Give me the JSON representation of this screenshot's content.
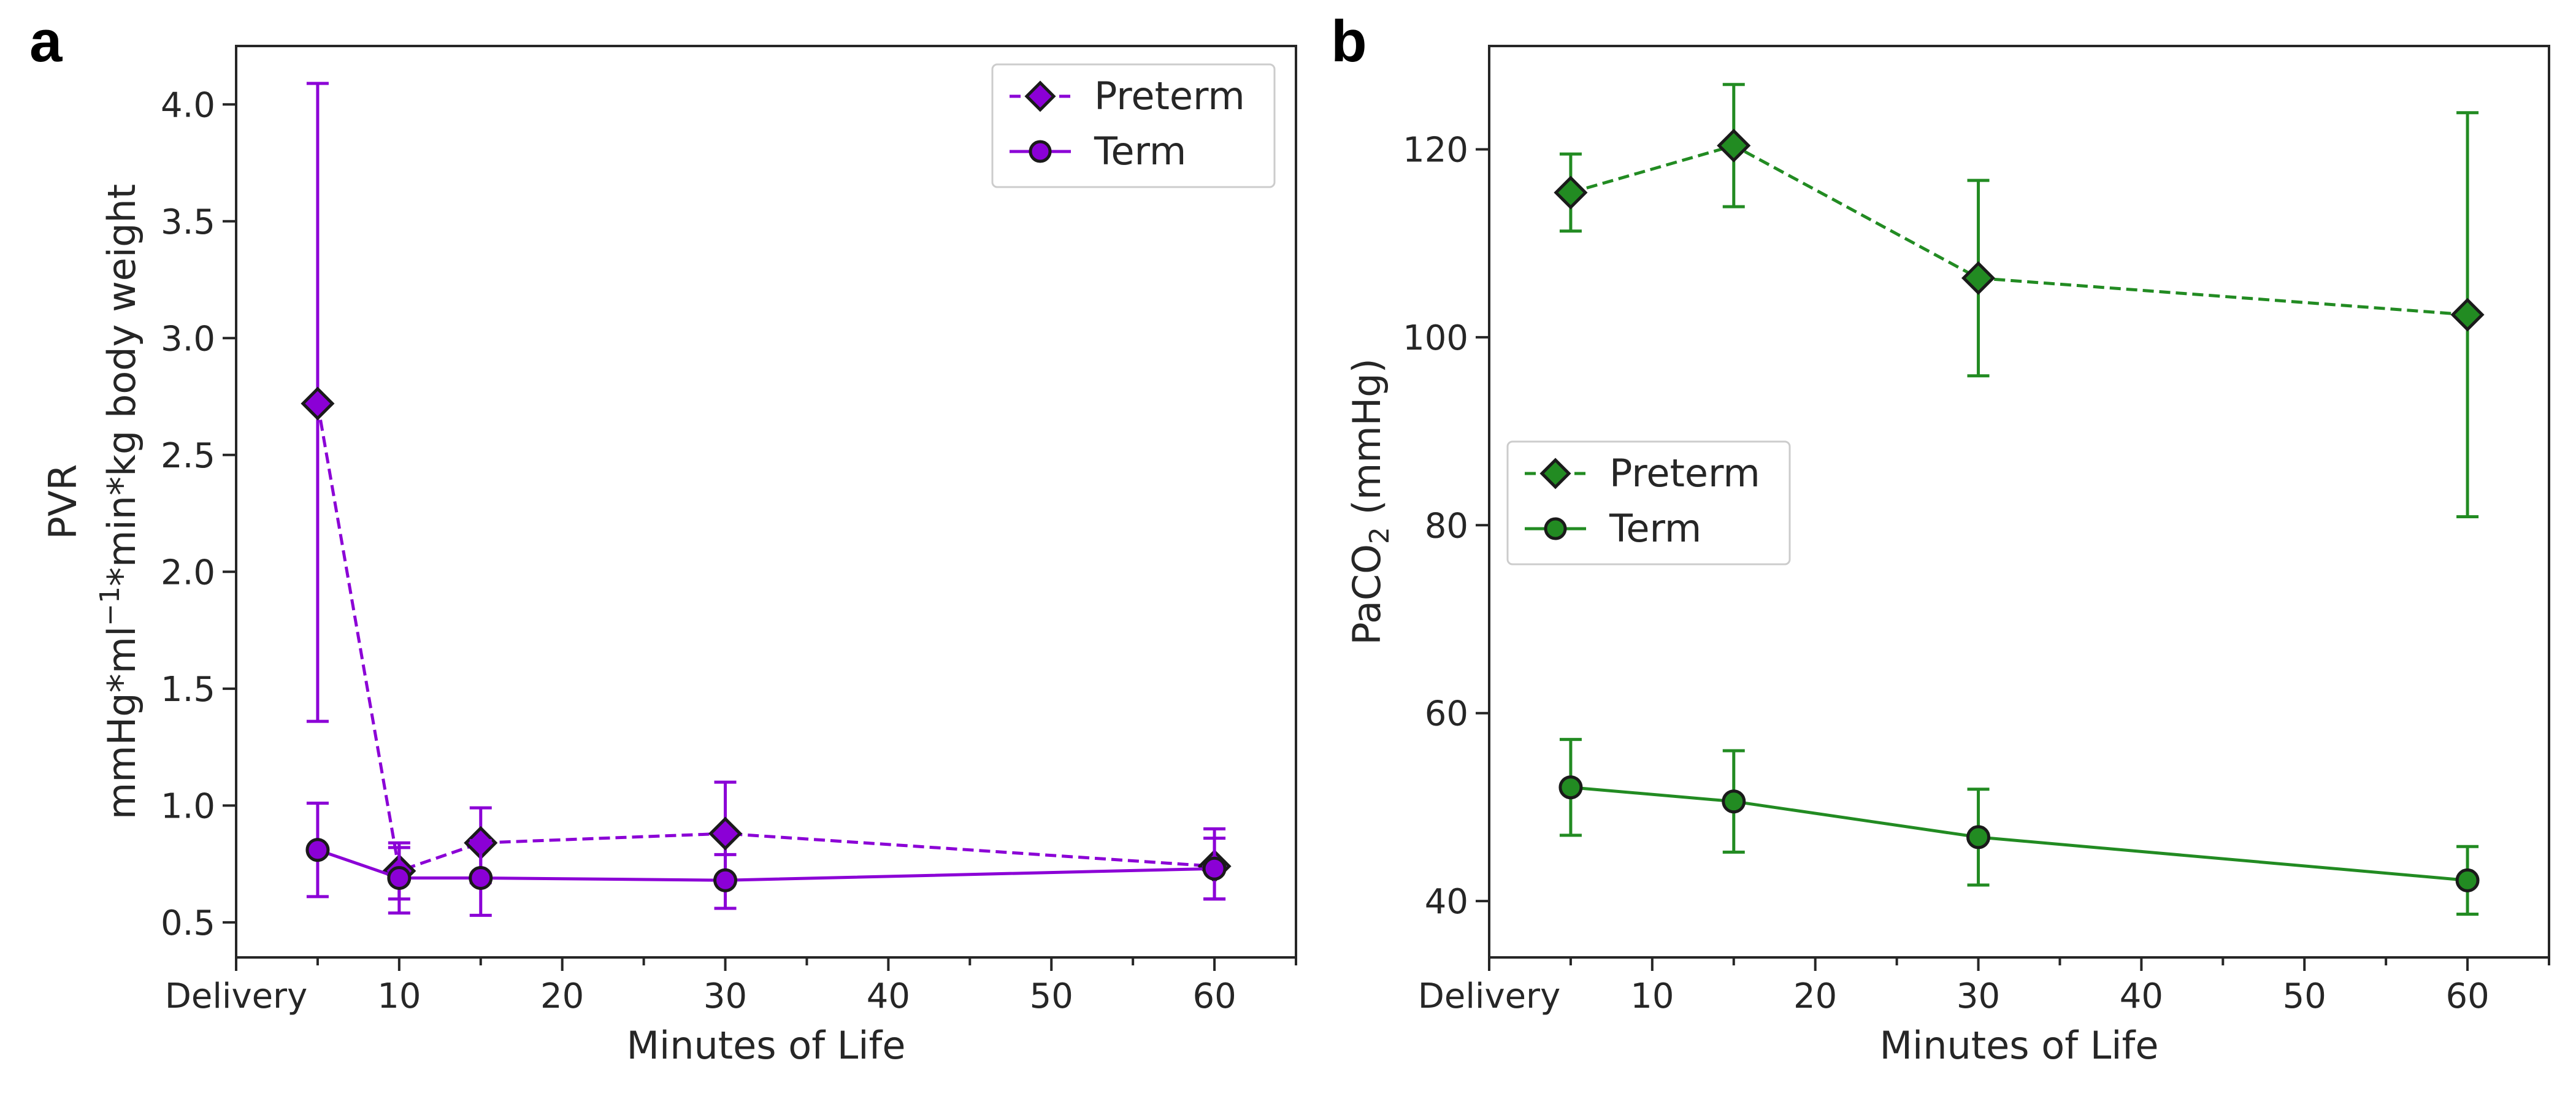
{
  "chart_data": [
    {
      "panel": "a",
      "type": "line",
      "xlabel": "Minutes of Life",
      "ylabel_line1": "PVR",
      "ylabel_line2_prefix": "mmHg*ml",
      "ylabel_line2_sup": "−1",
      "ylabel_line2_suffix": "*min*kg body weight",
      "xlim": [
        0,
        65
      ],
      "ylim": [
        0.35,
        4.25
      ],
      "x_ticks": [
        {
          "value": 0,
          "label": "Delivery"
        },
        {
          "value": 10,
          "label": "10"
        },
        {
          "value": 20,
          "label": "20"
        },
        {
          "value": 30,
          "label": "30"
        },
        {
          "value": 40,
          "label": "40"
        },
        {
          "value": 50,
          "label": "50"
        },
        {
          "value": 60,
          "label": "60"
        }
      ],
      "x_minor_ticks": [
        5,
        15,
        25,
        35,
        45,
        55,
        65
      ],
      "y_ticks": [
        {
          "value": 0.5,
          "label": "0.5"
        },
        {
          "value": 1.0,
          "label": "1.0"
        },
        {
          "value": 1.5,
          "label": "1.5"
        },
        {
          "value": 2.0,
          "label": "2.0"
        },
        {
          "value": 2.5,
          "label": "2.5"
        },
        {
          "value": 3.0,
          "label": "3.0"
        },
        {
          "value": 3.5,
          "label": "3.5"
        },
        {
          "value": 4.0,
          "label": "4.0"
        }
      ],
      "legend_position": "top-right",
      "color": "#8b00d6",
      "series": [
        {
          "name": "Preterm",
          "marker": "diamond",
          "linestyle": "dashed",
          "x": [
            5,
            10,
            15,
            30,
            60
          ],
          "y": [
            2.72,
            0.72,
            0.84,
            0.88,
            0.74
          ],
          "err_low": [
            1.36,
            0.6,
            0.67,
            0.68,
            0.6
          ],
          "err_high": [
            4.09,
            0.84,
            0.99,
            1.1,
            0.86
          ]
        },
        {
          "name": "Term",
          "marker": "circle",
          "linestyle": "solid",
          "x": [
            5,
            10,
            15,
            30,
            60
          ],
          "y": [
            0.81,
            0.69,
            0.69,
            0.68,
            0.73
          ],
          "err_low": [
            0.61,
            0.54,
            0.53,
            0.56,
            0.6
          ],
          "err_high": [
            1.01,
            0.82,
            0.85,
            0.79,
            0.9
          ]
        }
      ]
    },
    {
      "panel": "b",
      "type": "line",
      "xlabel": "Minutes of Life",
      "ylabel_prefix": "PaCO",
      "ylabel_sub": "2",
      "ylabel_suffix": " (mmHg)",
      "xlim": [
        0,
        65
      ],
      "ylim": [
        34,
        131
      ],
      "x_ticks": [
        {
          "value": 0,
          "label": "Delivery"
        },
        {
          "value": 10,
          "label": "10"
        },
        {
          "value": 20,
          "label": "20"
        },
        {
          "value": 30,
          "label": "30"
        },
        {
          "value": 40,
          "label": "40"
        },
        {
          "value": 50,
          "label": "50"
        },
        {
          "value": 60,
          "label": "60"
        }
      ],
      "x_minor_ticks": [
        5,
        15,
        25,
        35,
        45,
        55,
        65
      ],
      "y_ticks": [
        {
          "value": 40,
          "label": "40"
        },
        {
          "value": 60,
          "label": "60"
        },
        {
          "value": 80,
          "label": "80"
        },
        {
          "value": 100,
          "label": "100"
        },
        {
          "value": 120,
          "label": "120"
        }
      ],
      "legend_position": "center-left",
      "color": "#228b22",
      "series": [
        {
          "name": "Preterm",
          "marker": "diamond",
          "linestyle": "dashed",
          "x": [
            5,
            15,
            30,
            60
          ],
          "y": [
            115.4,
            120.4,
            106.3,
            102.4
          ],
          "err_low": [
            111.3,
            113.9,
            95.9,
            80.9
          ],
          "err_high": [
            119.5,
            126.9,
            116.7,
            123.9
          ]
        },
        {
          "name": "Term",
          "marker": "circle",
          "linestyle": "solid",
          "x": [
            5,
            15,
            30,
            60
          ],
          "y": [
            52.1,
            50.6,
            46.8,
            42.2
          ],
          "err_low": [
            47.0,
            45.2,
            41.7,
            38.6
          ],
          "err_high": [
            57.2,
            56.0,
            51.9,
            45.8
          ]
        }
      ]
    }
  ]
}
